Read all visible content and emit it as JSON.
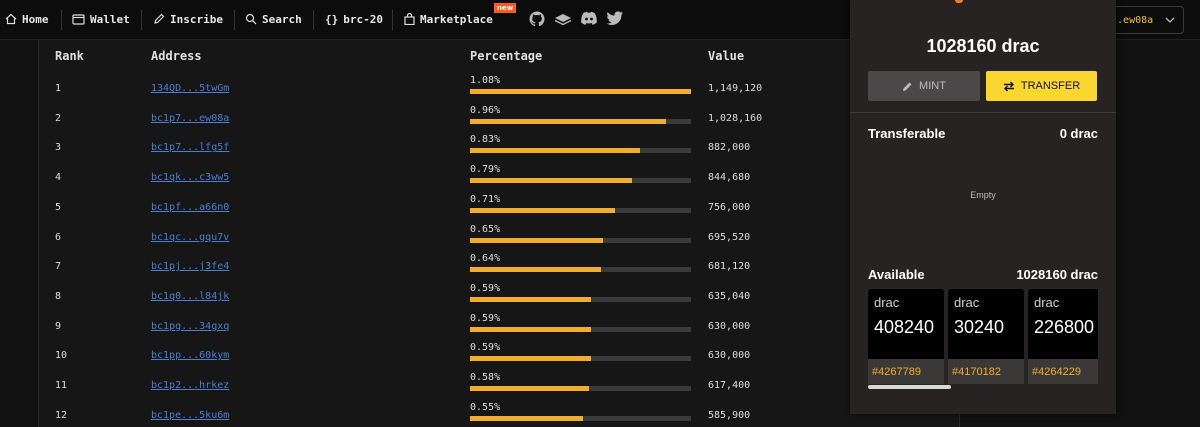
{
  "nav": {
    "items": [
      {
        "label": "Home"
      },
      {
        "label": "Wallet"
      },
      {
        "label": "Inscribe"
      },
      {
        "label": "Search"
      },
      {
        "label": "brc-20"
      },
      {
        "label": "Marketplace"
      }
    ],
    "new_badge": "new",
    "wallet_address": "...ew08a"
  },
  "table": {
    "headers": {
      "rank": "Rank",
      "address": "Address",
      "percentage": "Percentage",
      "value": "Value"
    },
    "rows": [
      {
        "rank": "1",
        "address": "134QD...5twGm",
        "percentage": "1.08%",
        "percent": 1.08,
        "value": "1,149,120"
      },
      {
        "rank": "2",
        "address": "bc1p7...ew08a",
        "percentage": "0.96%",
        "percent": 0.96,
        "value": "1,028,160"
      },
      {
        "rank": "3",
        "address": "bc1p7...lfg5f",
        "percentage": "0.83%",
        "percent": 0.83,
        "value": "882,000"
      },
      {
        "rank": "4",
        "address": "bc1qk...c3ww5",
        "percentage": "0.79%",
        "percent": 0.79,
        "value": "844,680"
      },
      {
        "rank": "5",
        "address": "bc1pf...a66n0",
        "percentage": "0.71%",
        "percent": 0.71,
        "value": "756,000"
      },
      {
        "rank": "6",
        "address": "bc1qc...gqu7v",
        "percentage": "0.65%",
        "percent": 0.65,
        "value": "695,520"
      },
      {
        "rank": "7",
        "address": "bc1pj...j3fe4",
        "percentage": "0.64%",
        "percent": 0.64,
        "value": "681,120"
      },
      {
        "rank": "8",
        "address": "bc1q0...l84jk",
        "percentage": "0.59%",
        "percent": 0.59,
        "value": "635,040"
      },
      {
        "rank": "9",
        "address": "bc1pg...34gxq",
        "percentage": "0.59%",
        "percent": 0.59,
        "value": "630,000"
      },
      {
        "rank": "10",
        "address": "bc1pp...60kym",
        "percentage": "0.59%",
        "percent": 0.59,
        "value": "630,000"
      },
      {
        "rank": "11",
        "address": "bc1p2...hrkez",
        "percentage": "0.58%",
        "percent": 0.58,
        "value": "617,400"
      },
      {
        "rank": "12",
        "address": "bc1pe...5ku6m",
        "percentage": "0.55%",
        "percent": 0.55,
        "value": "585,900"
      }
    ]
  },
  "panel": {
    "balance": "1028160 drac",
    "mint_label": "MINT",
    "transfer_label": "TRANSFER",
    "transferable_label": "Transferable",
    "transferable_value": "0 drac",
    "empty_text": "Empty",
    "available_label": "Available",
    "available_value": "1028160 drac",
    "cards": [
      {
        "tick": "drac",
        "amount": "408240",
        "id": "#4267789"
      },
      {
        "tick": "drac",
        "amount": "30240",
        "id": "#4170182"
      },
      {
        "tick": "drac",
        "amount": "226800",
        "id": "#4264229"
      }
    ]
  },
  "colors": {
    "accent": "#f9d72f",
    "bar": "#f2ad2e",
    "link": "#4a7fd4",
    "badge": "#ff5a1f"
  }
}
